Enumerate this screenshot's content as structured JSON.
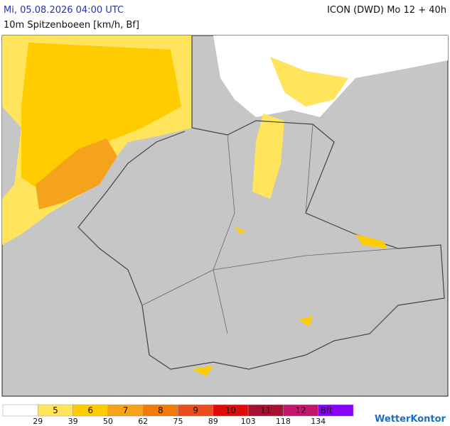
{
  "header": {
    "datetime": "Mi, 05.08.2026 04:00 UTC",
    "parameter": "10m Spitzenboeen [km/h, Bf]",
    "model": "ICON (DWD) Mo 12 + 40h"
  },
  "legend": {
    "items": [
      {
        "label": null,
        "color": "#ffffff"
      },
      {
        "label": "5",
        "color": "#ffe45c"
      },
      {
        "label": "6",
        "color": "#ffcc00"
      },
      {
        "label": "7",
        "color": "#f5a31b"
      },
      {
        "label": "8",
        "color": "#f07a0a"
      },
      {
        "label": "9",
        "color": "#e84d1c"
      },
      {
        "label": "10",
        "color": "#e00a0a"
      },
      {
        "label": "11",
        "color": "#a5122f"
      },
      {
        "label": "12",
        "color": "#c2176a"
      },
      {
        "label": "Bft",
        "color": "#8a00ff"
      }
    ],
    "thresholds": [
      29,
      39,
      50,
      62,
      75,
      89,
      103,
      118,
      134
    ]
  },
  "logo": "WetterKontor"
}
